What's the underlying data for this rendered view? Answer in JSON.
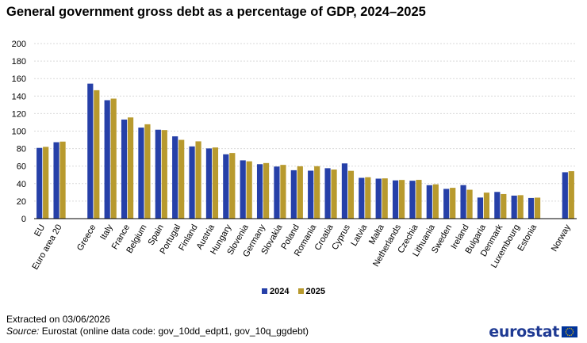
{
  "title": "General government gross debt as a percentage of GDP, 2024–2025",
  "colors": {
    "series_2024": "#2640a8",
    "series_2025": "#b89a2e",
    "grid": "#d9d9d9",
    "axis": "#000000",
    "logo": "#1f3a93",
    "flag": "#003399",
    "flag_stars": "#ffcc00"
  },
  "legend": [
    {
      "label": "2024",
      "color": "#2640a8"
    },
    {
      "label": "2025",
      "color": "#b89a2e"
    }
  ],
  "footer": {
    "extracted": "Extracted on 03/06/2026",
    "source_label": "Source:",
    "source_text": " Eurostat (online data code: gov_10dd_edpt1, gov_10q_ggdebt)",
    "logo_text": "eurostat"
  },
  "chart_data": {
    "type": "bar",
    "title": "General government gross debt as a percentage of GDP, 2024–2025",
    "xlabel": "",
    "ylabel": "",
    "ylim": [
      0,
      200
    ],
    "yticks": [
      0,
      20,
      40,
      60,
      80,
      100,
      120,
      140,
      160,
      180,
      200
    ],
    "grid": true,
    "legend_position": "bottom",
    "groups": [
      [
        "EU",
        "Euro area 20"
      ],
      [
        "Greece",
        "Italy",
        "France",
        "Belgium",
        "Spain",
        "Portugal",
        "Finland",
        "Austria",
        "Hungary",
        "Slovenia",
        "Germany",
        "Slovakia",
        "Poland",
        "Romania",
        "Croatia",
        "Cyprus",
        "Latvia",
        "Malta",
        "Netherlands",
        "Czechia",
        "Lithuania",
        "Sweden",
        "Ireland",
        "Bulgaria",
        "Denmark",
        "Luxembourg",
        "Estonia"
      ],
      [
        "Norway"
      ]
    ],
    "categories": [
      "EU",
      "Euro area 20",
      "Greece",
      "Italy",
      "France",
      "Belgium",
      "Spain",
      "Portugal",
      "Finland",
      "Austria",
      "Hungary",
      "Slovenia",
      "Germany",
      "Slovakia",
      "Poland",
      "Romania",
      "Croatia",
      "Cyprus",
      "Latvia",
      "Malta",
      "Netherlands",
      "Czechia",
      "Lithuania",
      "Sweden",
      "Ireland",
      "Bulgaria",
      "Denmark",
      "Luxembourg",
      "Estonia",
      "Norway"
    ],
    "series": [
      {
        "name": "2024",
        "values": [
          80.8,
          87.3,
          154.2,
          135.3,
          113.2,
          104.0,
          101.6,
          94.0,
          82.5,
          80.2,
          73.5,
          66.6,
          62.2,
          59.5,
          55.3,
          54.8,
          57.6,
          63.1,
          46.6,
          45.7,
          43.7,
          43.3,
          38.2,
          34.0,
          38.3,
          24.1,
          30.5,
          26.3,
          23.6,
          53.0
        ]
      },
      {
        "name": "2025",
        "values": [
          82.0,
          88.0,
          146.7,
          137.1,
          115.6,
          107.8,
          101.2,
          90.0,
          88.3,
          81.3,
          75.0,
          65.5,
          63.5,
          61.4,
          59.8,
          59.9,
          56.1,
          54.6,
          47.3,
          46.0,
          44.2,
          44.3,
          39.2,
          35.2,
          33.0,
          29.7,
          28.1,
          26.8,
          24.0,
          54.2
        ]
      }
    ]
  }
}
